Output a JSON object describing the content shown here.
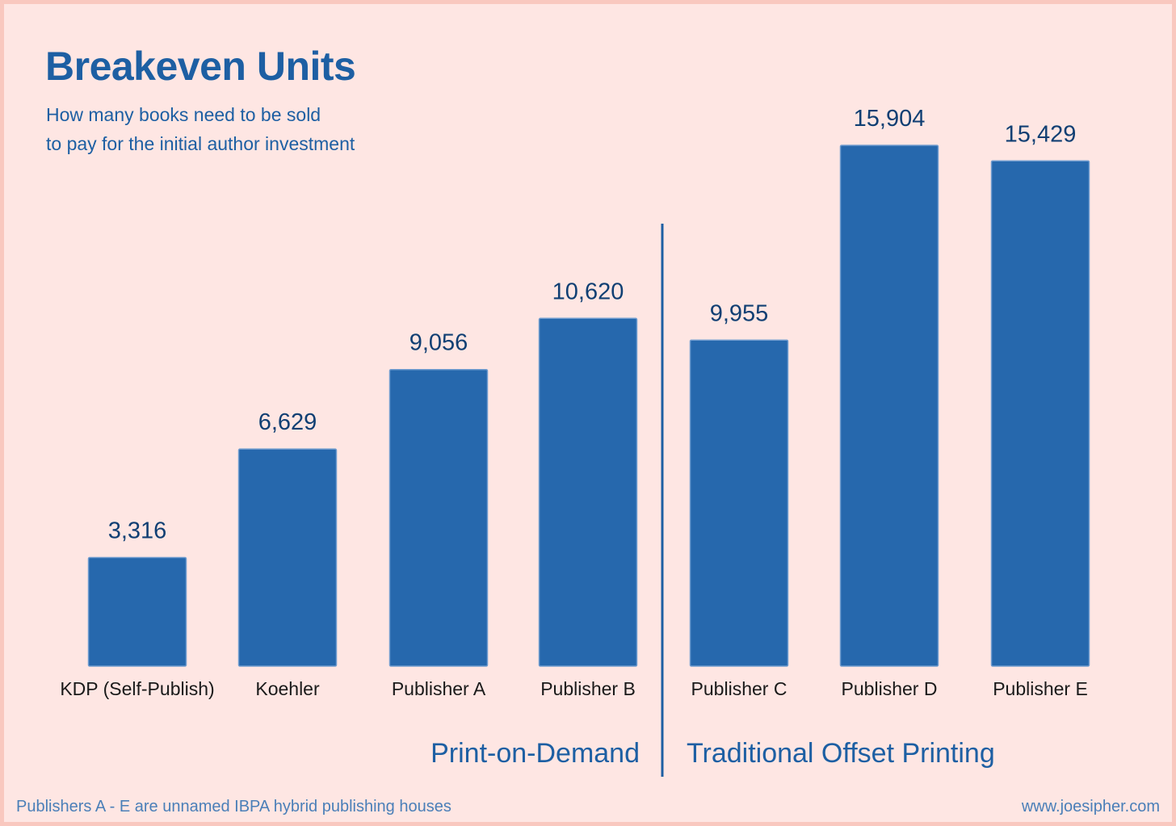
{
  "title": "Breakeven Units",
  "subtitle_lines": [
    "How many books need to be sold",
    "to pay for the initial author investment"
  ],
  "colors": {
    "background": "#fee6e3",
    "border": "#f9c8bf",
    "bar": "#2668ad",
    "accent": "#1d5fa3",
    "value_label": "#103f73",
    "category_label": "#1a1a1a",
    "footer": "#4a7fb8"
  },
  "chart_data": {
    "type": "bar",
    "title": "Breakeven Units",
    "categories": [
      "KDP (Self-Publish)",
      "Koehler",
      "Publisher A",
      "Publisher B",
      "Publisher C",
      "Publisher D",
      "Publisher E"
    ],
    "values": [
      3316,
      6629,
      9056,
      10620,
      9955,
      15904,
      15429
    ],
    "value_labels": [
      "3,316",
      "6,629",
      "9,056",
      "10,620",
      "9,955",
      "15,904",
      "15,429"
    ],
    "ylim": [
      0,
      16500
    ],
    "grid": false,
    "groups": [
      {
        "name": "Print-on-Demand",
        "categories": [
          "KDP (Self-Publish)",
          "Koehler",
          "Publisher A",
          "Publisher B"
        ]
      },
      {
        "name": "Traditional Offset Printing",
        "categories": [
          "Publisher C",
          "Publisher D",
          "Publisher E"
        ]
      }
    ]
  },
  "footer": {
    "note": "Publishers A - E are unnamed IBPA hybrid publishing houses",
    "website": "www.joesipher.com"
  }
}
